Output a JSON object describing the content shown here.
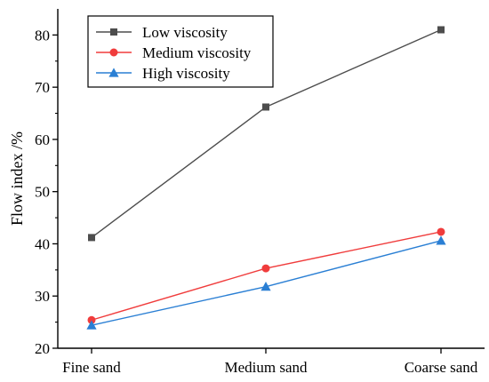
{
  "chart_data": {
    "type": "line",
    "categories": [
      "Fine sand",
      "Medium sand",
      "Coarse sand"
    ],
    "series": [
      {
        "name": "Low viscosity",
        "values": [
          41.2,
          66.2,
          81.0
        ],
        "color": "#4d4d4d",
        "marker": "square"
      },
      {
        "name": "Medium viscosity",
        "values": [
          25.4,
          35.3,
          42.3
        ],
        "color": "#f03c3c",
        "marker": "circle"
      },
      {
        "name": "High viscosity",
        "values": [
          24.4,
          31.8,
          40.6
        ],
        "color": "#2a7fd4",
        "marker": "triangle"
      }
    ],
    "title": "",
    "xlabel": "",
    "ylabel": "Flow index /%",
    "ylim": [
      20,
      85
    ],
    "yticks": [
      20,
      30,
      40,
      50,
      60,
      70,
      80
    ],
    "grid": false,
    "legend_position": "top-left"
  }
}
